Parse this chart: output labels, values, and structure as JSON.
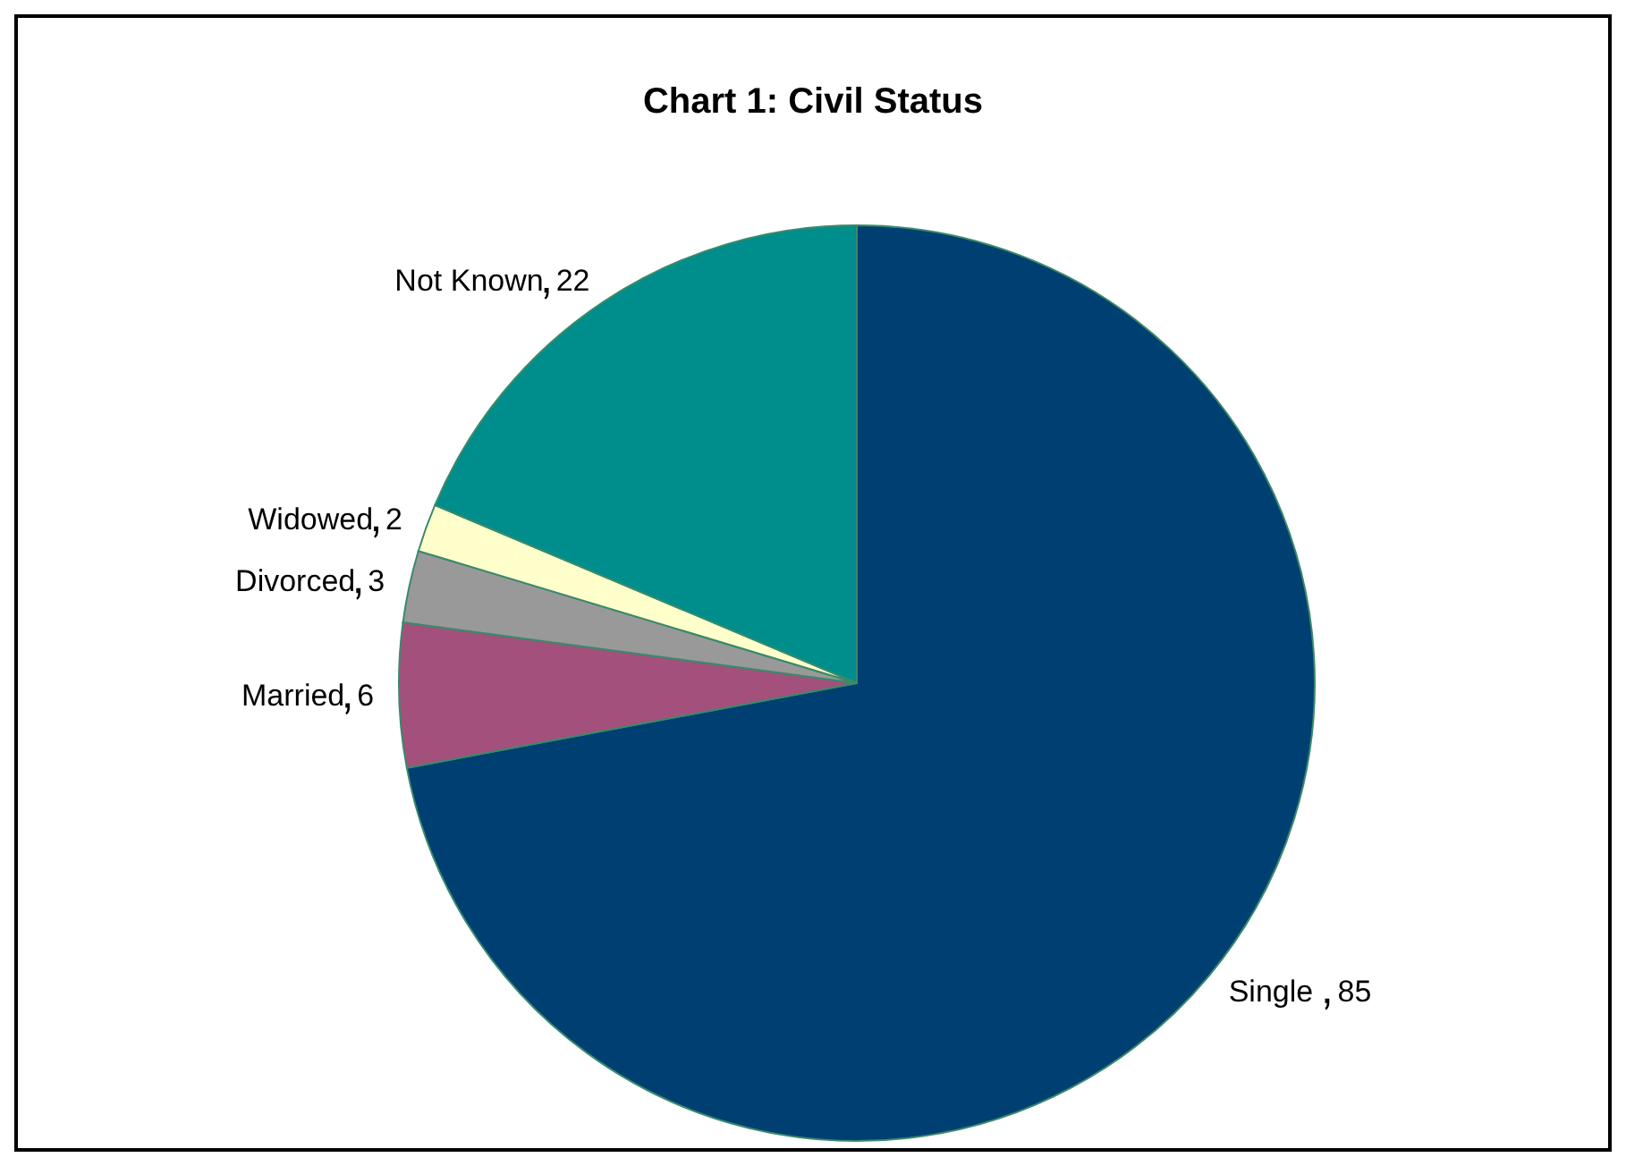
{
  "chart_data": {
    "type": "pie",
    "title": "Chart 1: Civil Status",
    "categories": [
      "Single",
      "Married",
      "Divorced",
      "Widowed",
      "Not Known"
    ],
    "values": [
      85,
      6,
      3,
      2,
      22
    ],
    "colors": [
      "#003f72",
      "#a3507c",
      "#999999",
      "#ffffcc",
      "#008e8c"
    ],
    "data_labels": true,
    "legend": false
  }
}
